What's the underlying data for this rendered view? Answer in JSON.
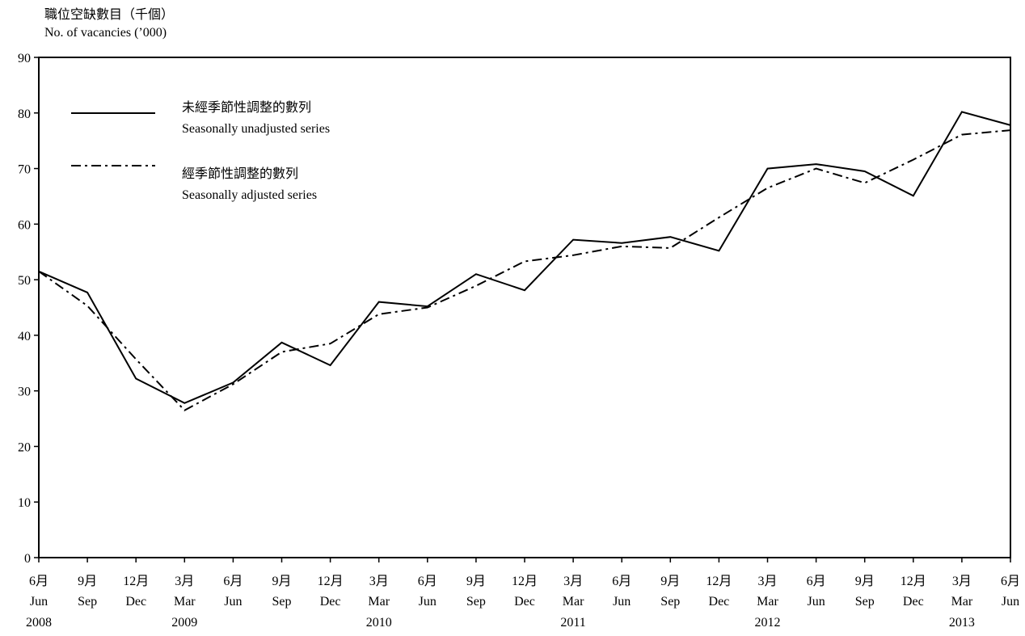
{
  "chart_data": {
    "type": "line",
    "title": "",
    "ylabel_zh": "職位空缺數目（千個）",
    "ylabel_en": "No. of vacancies (’000)",
    "ylim": [
      0,
      90
    ],
    "yticks": [
      0,
      10,
      20,
      30,
      40,
      50,
      60,
      70,
      80,
      90
    ],
    "grid": false,
    "legend_position": "top-left",
    "x_labels": [
      {
        "zh": "6月",
        "en": "Jun",
        "year": "2008"
      },
      {
        "zh": "9月",
        "en": "Sep",
        "year": ""
      },
      {
        "zh": "12月",
        "en": "Dec",
        "year": ""
      },
      {
        "zh": "3月",
        "en": "Mar",
        "year": "2009"
      },
      {
        "zh": "6月",
        "en": "Jun",
        "year": ""
      },
      {
        "zh": "9月",
        "en": "Sep",
        "year": ""
      },
      {
        "zh": "12月",
        "en": "Dec",
        "year": ""
      },
      {
        "zh": "3月",
        "en": "Mar",
        "year": "2010"
      },
      {
        "zh": "6月",
        "en": "Jun",
        "year": ""
      },
      {
        "zh": "9月",
        "en": "Sep",
        "year": ""
      },
      {
        "zh": "12月",
        "en": "Dec",
        "year": ""
      },
      {
        "zh": "3月",
        "en": "Mar",
        "year": "2011"
      },
      {
        "zh": "6月",
        "en": "Jun",
        "year": ""
      },
      {
        "zh": "9月",
        "en": "Sep",
        "year": ""
      },
      {
        "zh": "12月",
        "en": "Dec",
        "year": ""
      },
      {
        "zh": "3月",
        "en": "Mar",
        "year": "2012"
      },
      {
        "zh": "6月",
        "en": "Jun",
        "year": ""
      },
      {
        "zh": "9月",
        "en": "Sep",
        "year": ""
      },
      {
        "zh": "12月",
        "en": "Dec",
        "year": ""
      },
      {
        "zh": "3月",
        "en": "Mar",
        "year": "2013"
      },
      {
        "zh": "6月",
        "en": "Jun",
        "year": ""
      }
    ],
    "series": [
      {
        "name_zh": "未經季節性調整的數列",
        "name_en": "Seasonally unadjusted series",
        "style": "solid",
        "values": [
          51.5,
          47.7,
          32.2,
          27.8,
          31.5,
          38.7,
          34.6,
          46.0,
          45.2,
          51.0,
          48.1,
          57.2,
          56.6,
          57.7,
          55.2,
          70.0,
          70.8,
          69.5,
          65.1,
          80.2,
          77.8
        ]
      },
      {
        "name_zh": "經季節性調整的數列",
        "name_en": "Seasonally adjusted series",
        "style": "dash-dot",
        "values": [
          51.5,
          45.3,
          35.7,
          26.5,
          31.2,
          37.0,
          38.5,
          43.8,
          45.0,
          48.9,
          53.3,
          54.4,
          56.0,
          55.7,
          61.2,
          66.5,
          70.0,
          67.4,
          71.6,
          76.1,
          76.9
        ]
      }
    ]
  }
}
